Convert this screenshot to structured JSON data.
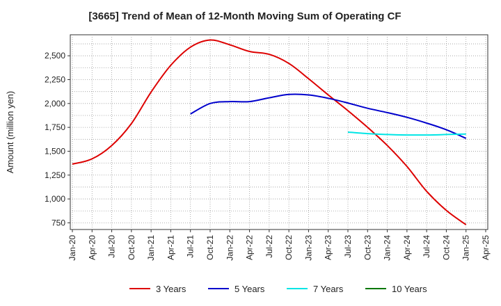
{
  "chart_data": {
    "type": "line",
    "title": "[3665]  Trend of Mean of 12-Month Moving Sum of Operating CF",
    "xlabel": "",
    "ylabel": "Amount (million yen)",
    "ylim": [
      680,
      2720
    ],
    "yticks": [
      750,
      1000,
      1250,
      1500,
      1750,
      2000,
      2250,
      2500
    ],
    "ytick_labels": [
      "750",
      "1,000",
      "1,250",
      "1,500",
      "1,750",
      "2,000",
      "2,250",
      "2,500"
    ],
    "xtick_labels": [
      "Jan-20",
      "Apr-20",
      "Jul-20",
      "Oct-20",
      "Jan-21",
      "Apr-21",
      "Jul-21",
      "Oct-21",
      "Jan-22",
      "Apr-22",
      "Jul-22",
      "Oct-22",
      "Jan-23",
      "Apr-23",
      "Jul-23",
      "Oct-23",
      "Jan-24",
      "Apr-24",
      "Jul-24",
      "Oct-24",
      "Jan-25",
      "Apr-25"
    ],
    "grid": true,
    "legend_position": "bottom",
    "series": [
      {
        "name": "3 Years",
        "color": "#dd0000",
        "points": [
          [
            0,
            1365
          ],
          [
            3,
            1420
          ],
          [
            6,
            1560
          ],
          [
            9,
            1790
          ],
          [
            12,
            2120
          ],
          [
            15,
            2400
          ],
          [
            18,
            2590
          ],
          [
            21,
            2665
          ],
          [
            24,
            2615
          ],
          [
            27,
            2545
          ],
          [
            30,
            2515
          ],
          [
            33,
            2420
          ],
          [
            36,
            2260
          ],
          [
            39,
            2090
          ],
          [
            42,
            1925
          ],
          [
            45,
            1750
          ],
          [
            48,
            1560
          ],
          [
            51,
            1340
          ],
          [
            54,
            1080
          ],
          [
            57,
            880
          ],
          [
            60,
            730
          ]
        ]
      },
      {
        "name": "5 Years",
        "color": "#0000cc",
        "points": [
          [
            18,
            1890
          ],
          [
            21,
            2000
          ],
          [
            24,
            2020
          ],
          [
            27,
            2020
          ],
          [
            30,
            2060
          ],
          [
            33,
            2095
          ],
          [
            36,
            2090
          ],
          [
            39,
            2055
          ],
          [
            42,
            2005
          ],
          [
            45,
            1950
          ],
          [
            48,
            1905
          ],
          [
            51,
            1855
          ],
          [
            54,
            1795
          ],
          [
            57,
            1725
          ],
          [
            60,
            1635
          ]
        ]
      },
      {
        "name": "7 Years",
        "color": "#00e5e5",
        "points": [
          [
            42,
            1700
          ],
          [
            45,
            1685
          ],
          [
            48,
            1675
          ],
          [
            51,
            1670
          ],
          [
            54,
            1670
          ],
          [
            57,
            1675
          ],
          [
            60,
            1680
          ]
        ]
      },
      {
        "name": "10 Years",
        "color": "#007700",
        "points": []
      }
    ]
  }
}
